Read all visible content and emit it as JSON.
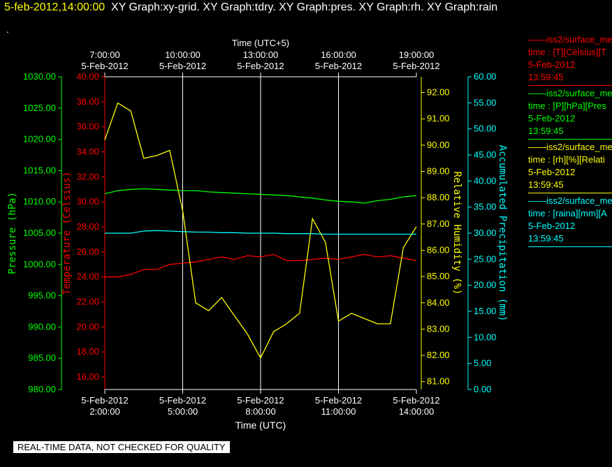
{
  "header": {
    "timestamp": "5-feb-2012,14:00:00",
    "graphs": "XY Graph:xy-grid.  XY Graph:tdry.  XY Graph:pres.  XY Graph:rh.  XY Graph:rain"
  },
  "dot": ".",
  "banner": "REAL-TIME DATA, NOT CHECKED FOR QUALITY",
  "legend": [
    {
      "line1": "——iss2/surface_me",
      "line2": "time : [T][Celsius][T",
      "line3": "5-Feb-2012",
      "line4": "13:59:45",
      "color": "#ff0000"
    },
    {
      "line1": "——iss2/surface_me",
      "line2": "time : [P][hPa][Pres",
      "line3": "5-Feb-2012",
      "line4": "13:59:45",
      "color": "#00ff00"
    },
    {
      "line1": "——iss2/surface_me",
      "line2": "time : [rh][%][Relati",
      "line3": "5-Feb-2012",
      "line4": "13:59:45",
      "color": "#ffff00"
    },
    {
      "line1": "——iss2/surface_me",
      "line2": "time : [raina][mm][A",
      "line3": "5-Feb-2012",
      "line4": "13:59:45",
      "color": "#00ffff"
    }
  ],
  "chart_data": {
    "type": "line",
    "x_label_bottom": "Time (UTC)",
    "x_label_top": "Time (UTC+5)",
    "x_range": [
      "5-Feb-2012 2:00:00",
      "5-Feb-2012 14:00:00"
    ],
    "x_ticks_bottom": [
      {
        "date": "5-Feb-2012",
        "time": "2:00:00"
      },
      {
        "date": "5-Feb-2012",
        "time": "5:00:00"
      },
      {
        "date": "5-Feb-2012",
        "time": "8:00:00"
      },
      {
        "date": "5-Feb-2012",
        "time": "11:00:00"
      },
      {
        "date": "5-Feb-2012",
        "time": "14:00:00"
      }
    ],
    "x_ticks_top": [
      {
        "time": "7:00:00",
        "date": "5-Feb-2012"
      },
      {
        "time": "10:00:00",
        "date": "5-Feb-2012"
      },
      {
        "time": "13:00:00",
        "date": "5-Feb-2012"
      },
      {
        "time": "16:00:00",
        "date": "5-Feb-2012"
      },
      {
        "time": "19:00:00",
        "date": "5-Feb-2012"
      }
    ],
    "x_hours": [
      2,
      2.5,
      3,
      3.5,
      4,
      4.5,
      5,
      5.5,
      6,
      6.5,
      7,
      7.5,
      8,
      8.5,
      9,
      9.5,
      10,
      10.5,
      11,
      11.5,
      12,
      12.5,
      13,
      13.5,
      14
    ],
    "axes": [
      {
        "id": "pres",
        "label": "Pressure (hPa)",
        "color": "#00ff00",
        "ticks": [
          "980.00",
          "985.00",
          "990.00",
          "995.00",
          "1000.00",
          "1005.00",
          "1010.00",
          "1015.00",
          "1020.00",
          "1025.00",
          "1030.00"
        ],
        "range": [
          980,
          1030
        ]
      },
      {
        "id": "temp",
        "label": "Temperature (Celsius)",
        "color": "#ff0000",
        "ticks": [
          "16.00",
          "18.00",
          "20.00",
          "22.00",
          "24.00",
          "26.00",
          "28.00",
          "30.00",
          "32.00",
          "34.00",
          "36.00",
          "38.00",
          "40.00"
        ],
        "range": [
          15,
          40
        ]
      },
      {
        "id": "rh",
        "label": "Relative Humidity (%)",
        "color": "#ffff00",
        "ticks": [
          "81.00",
          "82.00",
          "83.00",
          "84.00",
          "85.00",
          "86.00",
          "87.00",
          "88.00",
          "89.00",
          "90.00",
          "91.00",
          "92.00"
        ],
        "range": [
          80.7,
          92.6
        ]
      },
      {
        "id": "rain",
        "label": "Accumulated Precipitation (mm)",
        "color": "#00ffff",
        "ticks": [
          "0.00",
          "5.00",
          "10.00",
          "15.00",
          "20.00",
          "25.00",
          "30.00",
          "35.00",
          "40.00",
          "45.00",
          "50.00",
          "55.00",
          "60.00"
        ],
        "range": [
          0,
          60
        ]
      }
    ],
    "series": [
      {
        "axis": "temp",
        "color": "#ff0000",
        "values": [
          24.0,
          24.0,
          24.2,
          24.6,
          24.6,
          25.0,
          25.1,
          25.2,
          25.4,
          25.6,
          25.4,
          25.7,
          25.6,
          25.8,
          25.3,
          25.3,
          25.4,
          25.5,
          25.4,
          25.6,
          25.8,
          25.6,
          25.7,
          25.5,
          25.3
        ]
      },
      {
        "axis": "pres",
        "color": "#00ff00",
        "values": [
          1011.3,
          1011.8,
          1012.0,
          1012.1,
          1012.0,
          1011.9,
          1011.8,
          1011.8,
          1011.6,
          1011.5,
          1011.4,
          1011.3,
          1011.2,
          1011.1,
          1011.0,
          1010.8,
          1010.6,
          1010.3,
          1010.1,
          1010.0,
          1009.8,
          1010.2,
          1010.4,
          1010.8,
          1011.0
        ]
      },
      {
        "axis": "rh",
        "color": "#ffff00",
        "values": [
          90.2,
          91.6,
          91.3,
          89.5,
          89.6,
          89.8,
          87.5,
          84.0,
          83.7,
          84.2,
          83.5,
          82.8,
          81.9,
          82.9,
          83.2,
          83.6,
          87.2,
          86.3,
          83.3,
          83.6,
          83.4,
          83.2,
          83.2,
          86.1,
          86.9
        ]
      },
      {
        "axis": "rain",
        "color": "#00ffff",
        "values": [
          30.0,
          30.0,
          30.0,
          30.4,
          30.5,
          30.4,
          30.3,
          30.2,
          30.2,
          30.1,
          30.1,
          30.0,
          30.0,
          30.0,
          29.9,
          29.9,
          29.9,
          29.8,
          29.8,
          29.8,
          29.8,
          29.8,
          29.8,
          29.8,
          29.8
        ]
      }
    ]
  }
}
